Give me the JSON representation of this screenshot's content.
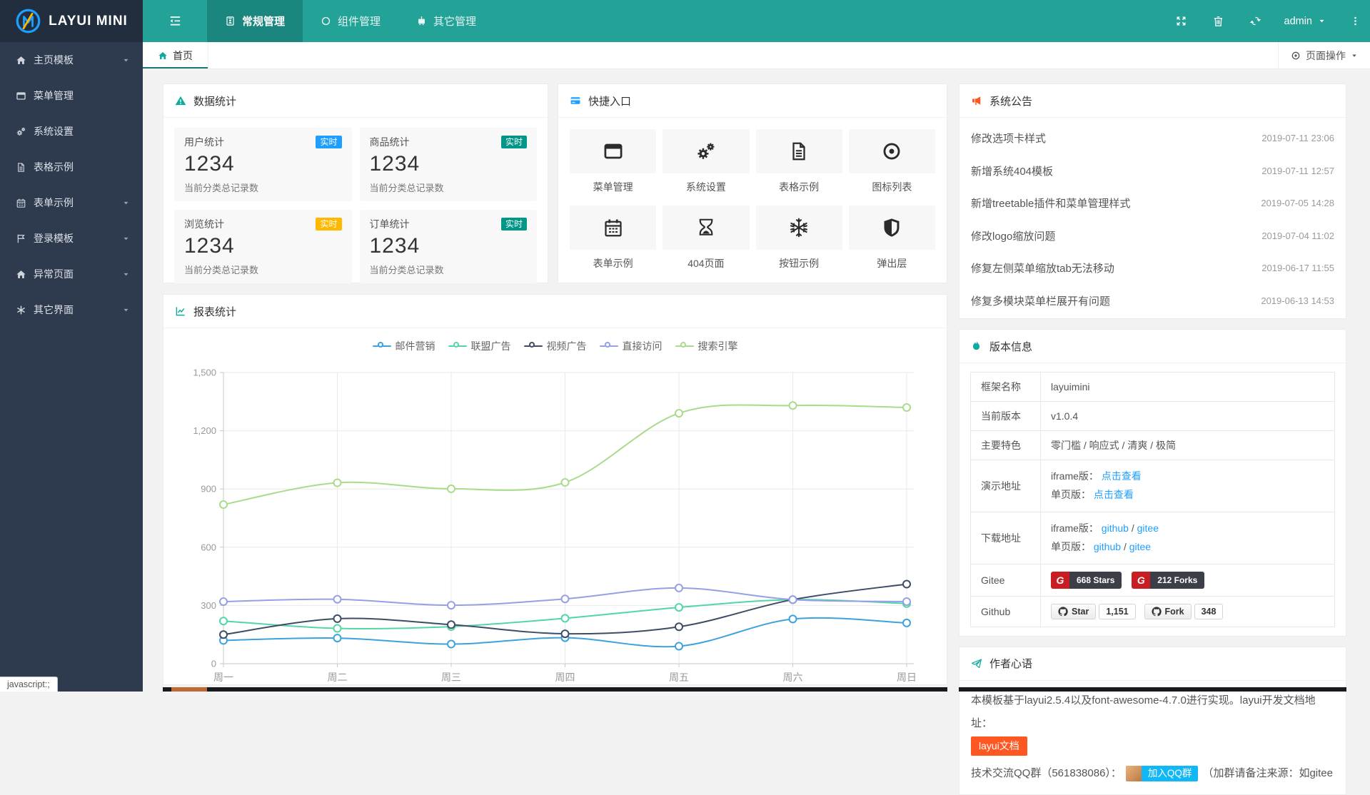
{
  "theme": {
    "header_bg": "#23A298",
    "header_active_bg": "#1B867E",
    "logo_bg": "#222E3E",
    "sidebar_bg": "#2E3A4E",
    "tab_underline": "#197971",
    "accent_teal": "#10A99E",
    "link_blue": "#1E9FFF",
    "announce_icon_red": "#FF5722",
    "shortcut_icon_blue": "#1E9FFF",
    "badge_blue": "#1E9FFF",
    "badge_green": "#009688",
    "badge_orange": "#FFB800",
    "gitee_red": "#C71D23",
    "gitee_dark": "#3C3F47",
    "doc_btn_orange": "#FF5722",
    "qq_btn_blue": "#12B7F5"
  },
  "header": {
    "logo_text": "LAYUI MINI",
    "logo_icon": "layui-logo-icon",
    "toggle_icon": "outdent-icon",
    "menu": [
      {
        "label": "常规管理",
        "icon": "id-badge-icon",
        "active": true
      },
      {
        "label": "组件管理",
        "icon": "circle-icon",
        "active": false
      },
      {
        "label": "其它管理",
        "icon": "robot-icon",
        "active": false
      }
    ],
    "actions": [
      {
        "name": "refresh",
        "icon": "refresh-icon"
      },
      {
        "name": "clear-cache",
        "icon": "trash-icon"
      },
      {
        "name": "fullscreen",
        "icon": "expand-icon"
      }
    ],
    "user": "admin",
    "more_icon": "ellipsis-v-icon"
  },
  "sidebar": {
    "items": [
      {
        "label": "主页模板",
        "icon": "home-icon",
        "expandable": true
      },
      {
        "label": "菜单管理",
        "icon": "window-icon",
        "expandable": false
      },
      {
        "label": "系统设置",
        "icon": "gears-icon",
        "expandable": false
      },
      {
        "label": "表格示例",
        "icon": "file-text-icon",
        "expandable": false
      },
      {
        "label": "表单示例",
        "icon": "calendar-icon",
        "expandable": true
      },
      {
        "label": "登录模板",
        "icon": "flag-icon",
        "expandable": true
      },
      {
        "label": "异常页面",
        "icon": "home-icon",
        "expandable": true
      },
      {
        "label": "其它界面",
        "icon": "asterisk-icon",
        "expandable": true
      }
    ]
  },
  "tabbar": {
    "home_tab": {
      "label": "首页",
      "icon": "home-icon",
      "active": true
    },
    "page_actions": {
      "label": "页面操作",
      "icon": "dot-circle-icon"
    }
  },
  "stats": {
    "title": "数据统计",
    "icon": "warning-icon",
    "icon_color": "#10A99E",
    "cards": [
      {
        "title": "用户统计",
        "badge": "实时",
        "badge_color": "#1E9FFF",
        "value": "1234",
        "desc": "当前分类总记录数"
      },
      {
        "title": "商品统计",
        "badge": "实时",
        "badge_color": "#009688",
        "value": "1234",
        "desc": "当前分类总记录数"
      },
      {
        "title": "浏览统计",
        "badge": "实时",
        "badge_color": "#FFB800",
        "value": "1234",
        "desc": "当前分类总记录数"
      },
      {
        "title": "订单统计",
        "badge": "实时",
        "badge_color": "#009688",
        "value": "1234",
        "desc": "当前分类总记录数"
      }
    ]
  },
  "shortcuts": {
    "title": "快捷入口",
    "icon": "card-icon",
    "icon_color": "#1E9FFF",
    "items": [
      {
        "label": "菜单管理",
        "icon": "window-icon"
      },
      {
        "label": "系统设置",
        "icon": "gears-icon"
      },
      {
        "label": "表格示例",
        "icon": "file-text-icon"
      },
      {
        "label": "图标列表",
        "icon": "dot-circle-icon"
      },
      {
        "label": "表单示例",
        "icon": "calendar-icon"
      },
      {
        "label": "404页面",
        "icon": "hourglass-icon"
      },
      {
        "label": "按钮示例",
        "icon": "snowflake-icon"
      },
      {
        "label": "弹出层",
        "icon": "shield-icon"
      }
    ]
  },
  "report": {
    "title": "报表统计",
    "icon": "line-chart-icon",
    "icon_color": "#10A99E"
  },
  "chart_data": {
    "type": "line",
    "smooth": true,
    "grid": true,
    "legend_position": "top",
    "x": [
      "周一",
      "周二",
      "周三",
      "周四",
      "周五",
      "周六",
      "周日"
    ],
    "ylim": [
      0,
      1500
    ],
    "yticks": [
      [
        0,
        "0"
      ],
      [
        300,
        "300"
      ],
      [
        600,
        "600"
      ],
      [
        900,
        "900"
      ],
      [
        1200,
        "1,200"
      ],
      [
        1500,
        "1,500"
      ]
    ],
    "series": [
      {
        "name": "邮件营销",
        "color": "#3CA2DE",
        "values": [
          120,
          132,
          101,
          134,
          90,
          230,
          210
        ]
      },
      {
        "name": "联盟广告",
        "color": "#52D6A9",
        "values": [
          220,
          182,
          191,
          234,
          290,
          330,
          310
        ]
      },
      {
        "name": "视频广告",
        "color": "#3E4C66",
        "values": [
          150,
          232,
          201,
          154,
          190,
          330,
          410
        ]
      },
      {
        "name": "直接访问",
        "color": "#95A0E5",
        "values": [
          320,
          332,
          301,
          334,
          390,
          330,
          320
        ]
      },
      {
        "name": "搜索引擎",
        "color": "#A9DB8C",
        "values": [
          820,
          932,
          901,
          934,
          1290,
          1330,
          1320
        ]
      }
    ]
  },
  "announcements": {
    "title": "系统公告",
    "icon": "bullhorn-icon",
    "icon_color": "#FF5722",
    "items": [
      {
        "text": "修改选项卡样式",
        "date": "2019-07-11 23:06"
      },
      {
        "text": "新增系统404模板",
        "date": "2019-07-11 12:57"
      },
      {
        "text": "新增treetable插件和菜单管理样式",
        "date": "2019-07-05 14:28"
      },
      {
        "text": "修改logo缩放问题",
        "date": "2019-07-04 11:02"
      },
      {
        "text": "修复左侧菜单缩放tab无法移动",
        "date": "2019-06-17 11:55"
      },
      {
        "text": "修复多模块菜单栏展开有问题",
        "date": "2019-06-13 14:53"
      }
    ]
  },
  "version": {
    "title": "版本信息",
    "icon": "fire-icon",
    "icon_color": "#10A99E",
    "framework_label": "框架名称",
    "framework_value": "layuimini",
    "version_label": "当前版本",
    "version_value": "v1.0.4",
    "features_label": "主要特色",
    "features_value": "零门槛 / 响应式 / 清爽 / 极简",
    "demo_label": "演示地址",
    "demo_iframe_prefix": "iframe版：",
    "demo_iframe_link": "点击查看",
    "demo_spa_prefix": "单页版：",
    "demo_spa_link": "点击查看",
    "download_label": "下载地址",
    "download_iframe_prefix": "iframe版：",
    "download_spa_prefix": "单页版：",
    "github_link": "github",
    "gitee_link": "gitee",
    "link_sep": "/",
    "gitee_label": "Gitee",
    "gitee_logo": "G",
    "gitee_stars": "668 Stars",
    "gitee_forks": "212 Forks",
    "github_label": "Github",
    "github_star_btn": "Star",
    "github_star_count": "1,151",
    "github_fork_btn": "Fork",
    "github_fork_count": "348"
  },
  "author": {
    "title": "作者心语",
    "icon": "send-icon",
    "icon_color": "#10A99E",
    "intro": "本模板基于layui2.5.4以及font-awesome-4.7.0进行实现。layui开发文档地址：",
    "doc_btn": "layui文档",
    "qq_prefix": "技术交流QQ群（561838086）：",
    "qq_btn": "加入QQ群",
    "qq_suffix": "（加群请备注来源：如gitee"
  },
  "status_tooltip": "javascript:;"
}
